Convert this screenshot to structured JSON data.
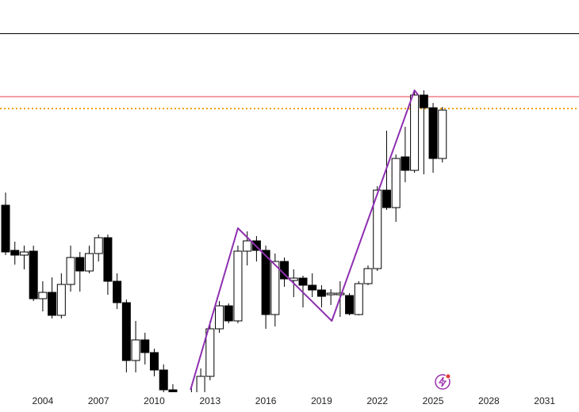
{
  "chart_data": {
    "type": "candlestick",
    "x": [
      2002,
      2002.5,
      2003,
      2003.5,
      2004,
      2004.5,
      2005,
      2005.5,
      2006,
      2006.5,
      2007,
      2007.5,
      2008,
      2008.5,
      2009,
      2009.5,
      2010,
      2010.5,
      2011,
      2012,
      2012.5,
      2013,
      2013.5,
      2014,
      2014.5,
      2015,
      2015.5,
      2016,
      2016.5,
      2017,
      2017.5,
      2018,
      2018.5,
      2019,
      2019.5,
      2020,
      2020.5,
      2021,
      2021.5,
      2022,
      2022.5,
      2023,
      2023.5,
      2024,
      2024.5,
      2025,
      2025.5
    ],
    "open": [
      236,
      179,
      173,
      178,
      118,
      126,
      97,
      136,
      170,
      153,
      175,
      195,
      140,
      113,
      40,
      66,
      50,
      28,
      3,
      -5,
      -3,
      20,
      80,
      109,
      90,
      178,
      191,
      179,
      98,
      165,
      141,
      144,
      135,
      129,
      123,
      123,
      122,
      98,
      137,
      156,
      255,
      233,
      297,
      280,
      375,
      359,
      295
    ],
    "high": [
      252,
      190,
      185,
      185,
      140,
      145,
      150,
      185,
      177,
      185,
      199,
      199,
      150,
      117,
      90,
      75,
      55,
      35,
      10,
      7,
      30,
      90,
      115,
      112,
      185,
      203,
      197,
      185,
      175,
      170,
      155,
      147,
      150,
      135,
      130,
      140,
      125,
      140,
      160,
      260,
      330,
      300,
      335,
      380,
      381,
      365,
      360
    ],
    "low": [
      173,
      161,
      155,
      115,
      102,
      93,
      93,
      127,
      127,
      150,
      165,
      123,
      105,
      25,
      25,
      35,
      20,
      0,
      -10,
      -15,
      -5,
      15,
      75,
      87,
      87,
      160,
      165,
      80,
      83,
      133,
      120,
      107,
      120,
      107,
      110,
      95,
      97,
      97,
      135,
      153,
      230,
      215,
      265,
      277,
      275,
      277,
      290
    ],
    "close": [
      177,
      173,
      177,
      118,
      126,
      97,
      136,
      170,
      153,
      175,
      195,
      140,
      113,
      40,
      66,
      50,
      28,
      3,
      -5,
      -10,
      20,
      80,
      109,
      90,
      178,
      191,
      179,
      98,
      165,
      143,
      144,
      135,
      129,
      121,
      125,
      125,
      99,
      137,
      156,
      255,
      233,
      295,
      280,
      375,
      359,
      295,
      356
    ],
    "up_color": "#ffffff",
    "down_color": "#000000",
    "xlim": [
      2001.7,
      2032.85
    ],
    "xticks": [
      2004,
      2007,
      2010,
      2013,
      2016,
      2019,
      2022,
      2025,
      2028,
      2031
    ],
    "ylim": [
      0,
      453
    ],
    "lines": [
      {
        "value": 373,
        "color": "#e0404a",
        "style": "solid"
      },
      {
        "value": 358,
        "color": "#f0a000",
        "style": "dotted"
      }
    ],
    "zigzag": {
      "color": "#8e2fb0",
      "x": [
        2011.95,
        2014.5,
        2019.55,
        2024.0,
        2024.2
      ],
      "y": [
        3,
        207,
        90,
        381,
        375
      ]
    }
  }
}
